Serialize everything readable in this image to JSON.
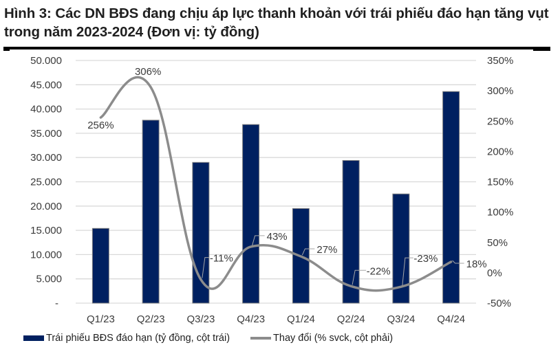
{
  "title": "Hình 3: Các DN BĐS đang chịu áp lực thanh khoản với trái phiếu đáo hạn tăng vụt trong năm 2023-2024 (Đơn vị: tỷ đồng)",
  "colors": {
    "bar": "#002060",
    "bar_border": "#7f7f7f",
    "line": "#8c8c8c",
    "grid": "#d9d9d9",
    "text": "#3a3a3a"
  },
  "legend": {
    "bar_label": "Trái phiếu BĐS đáo hạn (tỷ đồng, cột trái)",
    "line_label": "Thay đổi (% svck, cột phải)"
  },
  "chart_data": {
    "type": "bar+line",
    "title": "Hình 3: Các DN BĐS đang chịu áp lực thanh khoản với trái phiếu đáo hạn tăng vụt trong năm 2023-2024 (Đơn vị: tỷ đồng)",
    "categories": [
      "Q1/23",
      "Q2/23",
      "Q3/23",
      "Q4/23",
      "Q1/24",
      "Q2/24",
      "Q3/24",
      "Q4/24"
    ],
    "series": [
      {
        "name": "Trái phiếu BĐS đáo hạn (tỷ đồng, cột trái)",
        "type": "bar",
        "axis": "left",
        "values": [
          15400,
          37700,
          29000,
          36800,
          19500,
          29400,
          22500,
          43600
        ]
      },
      {
        "name": "Thay đổi (% svck, cột phải)",
        "type": "line",
        "axis": "right",
        "smooth": true,
        "values": [
          256,
          306,
          -11,
          43,
          27,
          -22,
          -23,
          18
        ],
        "labels": [
          "256%",
          "306%",
          "-11%",
          "43%",
          "27%",
          "-22%",
          "-23%",
          "18%"
        ]
      }
    ],
    "left_axis": {
      "ylim": [
        0,
        50000
      ],
      "ticks": [
        "-",
        "5.000",
        "10.000",
        "15.000",
        "20.000",
        "25.000",
        "30.000",
        "35.000",
        "40.000",
        "45.000",
        "50.000"
      ]
    },
    "right_axis": {
      "ylim": [
        -50,
        350
      ],
      "ticks": [
        "-50%",
        "0%",
        "50%",
        "100%",
        "150%",
        "200%",
        "250%",
        "300%",
        "350%"
      ]
    },
    "xlabel": "",
    "ylabel": "",
    "grid": true,
    "legend_position": "bottom"
  }
}
